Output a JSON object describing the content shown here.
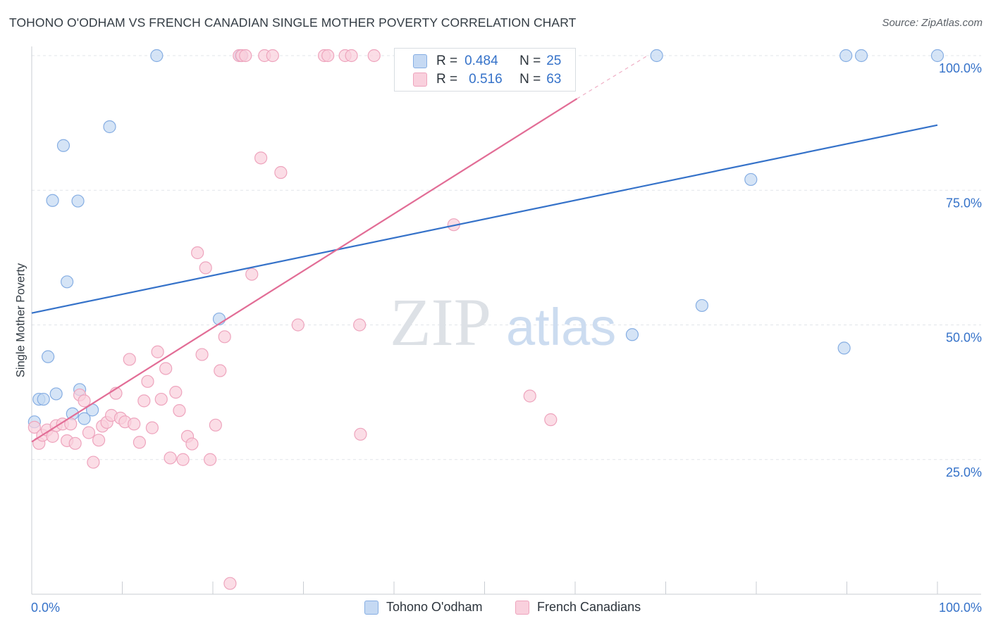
{
  "title": "TOHONO O'ODHAM VS FRENCH CANADIAN SINGLE MOTHER POVERTY CORRELATION CHART",
  "source": "Source: ZipAtlas.com",
  "colors": {
    "blue_fill": "#c5d9f3",
    "blue_stroke": "#86aee3",
    "blue_line": "#3572c9",
    "pink_fill": "#f9d0dd",
    "pink_stroke": "#eea4bd",
    "pink_line": "#e26d96",
    "tick_label": "#3572c9",
    "grid": "#e2e5ea"
  },
  "legend": {
    "r_label": "R =",
    "n_label": "N =",
    "series": [
      {
        "name": "Tohono O'odham",
        "r": "0.484",
        "n": "25",
        "color": "blue"
      },
      {
        "name": "French Canadians",
        "r": "0.516",
        "n": "63",
        "color": "pink"
      }
    ]
  },
  "watermark": {
    "zip": "ZIP",
    "atlas": "atlas"
  },
  "chart_data": {
    "type": "scatter",
    "title": "TOHONO O'ODHAM VS FRENCH CANADIAN SINGLE MOTHER POVERTY CORRELATION CHART",
    "xlabel": "",
    "ylabel": "Single Mother Poverty",
    "xlim": [
      0,
      100
    ],
    "ylim": [
      0,
      100
    ],
    "x_tick_labels": {
      "min": "0.0%",
      "max": "100.0%"
    },
    "y_ticks": [
      {
        "value": 25,
        "label": "25.0%"
      },
      {
        "value": 50,
        "label": "50.0%"
      },
      {
        "value": 75,
        "label": "75.0%"
      },
      {
        "value": 100,
        "label": "100.0%"
      }
    ],
    "grid": true,
    "legend_position": "top-center",
    "series": [
      {
        "name": "Tohono O'odham",
        "color": "blue",
        "trend": {
          "x0": 0,
          "y0": 52.2,
          "x1": 100,
          "y1": 87.1
        },
        "points": [
          [
            0.3,
            32.0
          ],
          [
            0.8,
            36.2
          ],
          [
            1.3,
            36.2
          ],
          [
            1.8,
            44.1
          ],
          [
            2.3,
            73.1
          ],
          [
            2.7,
            37.2
          ],
          [
            3.5,
            83.3
          ],
          [
            3.9,
            58.0
          ],
          [
            4.5,
            33.5
          ],
          [
            5.1,
            73.0
          ],
          [
            5.3,
            38.0
          ],
          [
            5.8,
            32.6
          ],
          [
            6.7,
            34.2
          ],
          [
            8.6,
            86.8
          ],
          [
            13.8,
            100.0
          ],
          [
            20.7,
            51.1
          ],
          [
            23.1,
            100.0
          ],
          [
            69.0,
            100.0
          ],
          [
            66.3,
            48.2
          ],
          [
            74.0,
            53.6
          ],
          [
            79.4,
            77.0
          ],
          [
            89.7,
            45.7
          ],
          [
            89.9,
            100.0
          ],
          [
            91.6,
            100.0
          ],
          [
            100.0,
            100.0
          ]
        ]
      },
      {
        "name": "French Canadians",
        "color": "pink",
        "trend": {
          "x0": 0,
          "y0": 28.3,
          "x1": 60.2,
          "y1": 92.0,
          "dashed_to": {
            "x": 68.0,
            "y": 100.0
          }
        },
        "points": [
          [
            0.3,
            31.0
          ],
          [
            0.8,
            28.0
          ],
          [
            1.2,
            29.5
          ],
          [
            1.7,
            30.5
          ],
          [
            2.3,
            29.3
          ],
          [
            2.7,
            31.3
          ],
          [
            3.4,
            31.6
          ],
          [
            3.9,
            28.5
          ],
          [
            4.3,
            31.6
          ],
          [
            4.8,
            28.0
          ],
          [
            5.3,
            37.0
          ],
          [
            5.8,
            35.9
          ],
          [
            6.3,
            30.0
          ],
          [
            6.8,
            24.5
          ],
          [
            7.4,
            28.6
          ],
          [
            7.8,
            31.2
          ],
          [
            8.3,
            31.9
          ],
          [
            8.8,
            33.2
          ],
          [
            9.3,
            37.3
          ],
          [
            9.8,
            32.7
          ],
          [
            10.3,
            32.0
          ],
          [
            10.8,
            43.6
          ],
          [
            11.3,
            31.6
          ],
          [
            11.9,
            28.2
          ],
          [
            12.4,
            35.9
          ],
          [
            12.8,
            39.5
          ],
          [
            13.3,
            30.9
          ],
          [
            13.9,
            45.0
          ],
          [
            14.3,
            36.2
          ],
          [
            14.8,
            41.9
          ],
          [
            15.3,
            25.3
          ],
          [
            15.9,
            37.5
          ],
          [
            16.3,
            34.1
          ],
          [
            16.7,
            25.0
          ],
          [
            17.2,
            29.3
          ],
          [
            17.7,
            27.9
          ],
          [
            18.3,
            63.4
          ],
          [
            18.8,
            44.5
          ],
          [
            19.2,
            60.6
          ],
          [
            19.7,
            25.0
          ],
          [
            20.3,
            31.4
          ],
          [
            20.8,
            41.5
          ],
          [
            21.3,
            47.8
          ],
          [
            21.9,
            2.0
          ],
          [
            22.9,
            100.0
          ],
          [
            23.2,
            100.0
          ],
          [
            23.6,
            100.0
          ],
          [
            24.3,
            59.4
          ],
          [
            25.3,
            81.0
          ],
          [
            25.7,
            100.0
          ],
          [
            26.6,
            100.0
          ],
          [
            27.5,
            78.3
          ],
          [
            29.4,
            50.0
          ],
          [
            32.3,
            100.0
          ],
          [
            32.7,
            100.0
          ],
          [
            34.6,
            100.0
          ],
          [
            35.3,
            100.0
          ],
          [
            36.2,
            50.0
          ],
          [
            36.3,
            29.7
          ],
          [
            37.8,
            100.0
          ],
          [
            46.6,
            68.6
          ],
          [
            55.0,
            36.8
          ],
          [
            57.3,
            32.4
          ]
        ]
      }
    ]
  }
}
